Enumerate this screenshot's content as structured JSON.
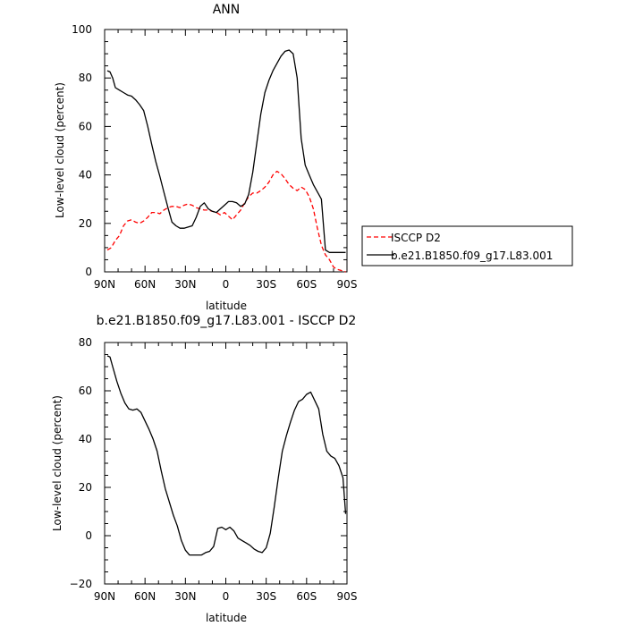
{
  "chart_data": [
    {
      "type": "line",
      "title": "ANN",
      "xlabel": "latitude",
      "ylabel": "Low-level cloud (percent)",
      "xlim": [
        90,
        -90
      ],
      "ylim": [
        0,
        100
      ],
      "xticks": [
        90,
        60,
        30,
        0,
        -30,
        -60,
        -90
      ],
      "xtick_labels": [
        "90N",
        "60N",
        "30N",
        "0",
        "30S",
        "60S",
        "90S"
      ],
      "yticks": [
        0,
        20,
        40,
        60,
        80,
        100
      ],
      "ytick_labels": [
        "0",
        "20",
        "40",
        "60",
        "80",
        "100"
      ],
      "legend_position": "right",
      "series": [
        {
          "name": "ISCCP D2",
          "color": "#ff0000",
          "style": "dashed",
          "x": [
            88,
            85,
            82,
            79,
            76,
            73,
            70,
            67,
            64,
            61,
            58,
            55,
            52,
            49,
            46,
            43,
            40,
            37,
            34,
            31,
            28,
            25,
            22,
            19,
            16,
            13,
            10,
            7,
            4,
            1,
            -2,
            -5,
            -8,
            -11,
            -14,
            -17,
            -20,
            -23,
            -26,
            -29,
            -32,
            -35,
            -38,
            -41,
            -44,
            -47,
            -50,
            -53,
            -56,
            -59,
            -62,
            -65,
            -68,
            -71,
            -74,
            -77,
            -80,
            -83,
            -86,
            -89
          ],
          "y": [
            9,
            10,
            13,
            15,
            19,
            21,
            21.5,
            20.5,
            20,
            21,
            22.5,
            24.5,
            24.5,
            24,
            25.5,
            26.5,
            27,
            27,
            26.5,
            27.5,
            28,
            27.5,
            26.5,
            26,
            25.5,
            25.5,
            25,
            24.5,
            23.5,
            24.5,
            23,
            21.5,
            23.5,
            25.5,
            28.5,
            31,
            32.5,
            32.5,
            33.5,
            35,
            37,
            40,
            41.5,
            40.5,
            38.5,
            36,
            34.5,
            33.5,
            35,
            34,
            31,
            26,
            18,
            11,
            7,
            5,
            2,
            1,
            0.5,
            0
          ]
        },
        {
          "name": "b.e21.B1850.f09_g17.L83.001",
          "color": "#000000",
          "style": "solid",
          "x": [
            88,
            86,
            84,
            82,
            79,
            76,
            73,
            70,
            67,
            64,
            61,
            58,
            55,
            52,
            49,
            46,
            43,
            40,
            37,
            34,
            31,
            28,
            25,
            22,
            19,
            16,
            13,
            10,
            7,
            4,
            1,
            -2,
            -5,
            -8,
            -11,
            -14,
            -17,
            -20,
            -23,
            -26,
            -29,
            -32,
            -35,
            -38,
            -41,
            -44,
            -47,
            -50,
            -53,
            -56,
            -59,
            -62,
            -65,
            -68,
            -71,
            -74,
            -77,
            -80,
            -83,
            -86,
            -89
          ],
          "y": [
            83,
            82.5,
            80,
            76,
            75,
            74,
            73,
            72.5,
            71,
            69,
            66.5,
            60,
            52.5,
            45.5,
            39.5,
            33,
            26.5,
            20.5,
            19,
            18,
            18,
            18.5,
            19,
            22.5,
            27,
            28.5,
            26,
            25,
            24.5,
            26,
            27.5,
            29,
            29,
            28.5,
            27,
            28,
            32,
            41,
            53,
            65,
            74,
            79,
            83,
            86,
            89,
            91,
            91.5,
            90,
            80,
            55,
            44,
            40,
            36,
            33,
            30,
            9,
            8,
            8,
            8,
            8,
            8
          ]
        }
      ]
    },
    {
      "type": "line",
      "title": "b.e21.B1850.f09_g17.L83.001 - ISCCP D2",
      "xlabel": "latitude",
      "ylabel": "Low-level cloud (percent)",
      "xlim": [
        90,
        -90
      ],
      "ylim": [
        -20,
        80
      ],
      "xticks": [
        90,
        60,
        30,
        0,
        -30,
        -60,
        -90
      ],
      "xtick_labels": [
        "90N",
        "60N",
        "30N",
        "0",
        "30S",
        "60S",
        "90S"
      ],
      "yticks": [
        -20,
        0,
        20,
        40,
        60,
        80
      ],
      "ytick_labels": [
        "−20",
        "0",
        "20",
        "40",
        "60",
        "80"
      ],
      "series": [
        {
          "color": "#000000",
          "style": "solid",
          "x": [
            88,
            86,
            84,
            81,
            78,
            75,
            72,
            69,
            66,
            63,
            60,
            57,
            54,
            51,
            48,
            45,
            42,
            39,
            36,
            33,
            30,
            27,
            24,
            21,
            18,
            15,
            12,
            9,
            6,
            3,
            0,
            -3,
            -6,
            -9,
            -12,
            -15,
            -18,
            -21,
            -24,
            -27,
            -30,
            -33,
            -36,
            -39,
            -42,
            -45,
            -48,
            -51,
            -54,
            -57,
            -60,
            -63,
            -66,
            -69,
            -72,
            -75,
            -78,
            -81,
            -84,
            -87,
            -89
          ],
          "y": [
            74.5,
            74,
            70,
            64,
            59,
            55,
            52.5,
            52,
            52.5,
            51,
            47.5,
            44,
            40,
            35,
            27,
            19.5,
            14,
            8.5,
            4,
            -2,
            -6,
            -8,
            -8,
            -8,
            -8,
            -7,
            -6.5,
            -4.5,
            3,
            3.5,
            2.5,
            3.5,
            2,
            -1,
            -2,
            -3,
            -4,
            -5.5,
            -6.5,
            -7,
            -5,
            1,
            12,
            24,
            35,
            41.5,
            47,
            52,
            55.5,
            56.5,
            58.5,
            59.5,
            56,
            52.5,
            42,
            35,
            33,
            32,
            29,
            24,
            9
          ]
        }
      ]
    }
  ]
}
